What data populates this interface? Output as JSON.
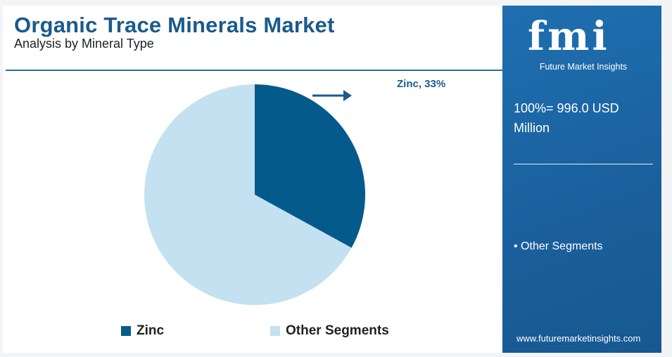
{
  "header": {
    "title": "Organic Trace Minerals Market",
    "subtitle": "Analysis by Mineral Type"
  },
  "chart_data": {
    "type": "pie",
    "categories": [
      "Zinc",
      "Other Segments"
    ],
    "values": [
      33,
      67
    ],
    "colors": [
      "#055a8c",
      "#c4e1f1"
    ],
    "annotations": [
      {
        "label": "Zinc, 33%",
        "target": "Zinc"
      }
    ],
    "legend": {
      "placement": "bottom",
      "entries": [
        "Zinc",
        "Other Segments"
      ]
    }
  },
  "sidebar": {
    "logo_text": "fmi",
    "logo_caption": "Future Market Insights",
    "total": "100%= 996.0 USD Million",
    "bullet": "• Other Segments",
    "website": "www.futuremarketinsights.com"
  },
  "bottom_bar_colors": [
    "#6db33f",
    "#e8702a",
    "#7a2f8f"
  ]
}
